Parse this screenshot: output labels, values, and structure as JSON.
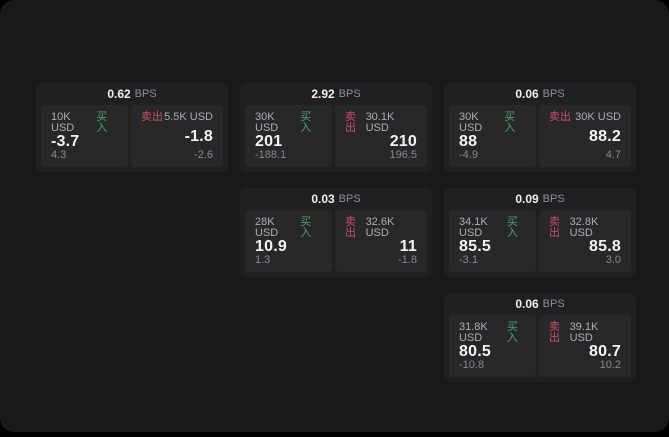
{
  "labels": {
    "bps": "BPS",
    "buy": "买入",
    "sell": "卖出"
  },
  "colors": {
    "buy": "#47a477",
    "sell": "#c94f63",
    "screen_background": "#19191b",
    "card_background": "#202022",
    "panel_background": "#28282a"
  },
  "cards": [
    {
      "bps": "0.62",
      "buy": {
        "amount": "10K USD",
        "price": "-3.7",
        "delta": "4.3"
      },
      "sell": {
        "amount": "5.5K USD",
        "price": "-1.8",
        "delta": "-2.6"
      }
    },
    {
      "bps": "2.92",
      "buy": {
        "amount": "30K USD",
        "price": "201",
        "delta": "-188.1"
      },
      "sell": {
        "amount": "30.1K USD",
        "price": "210",
        "delta": "196.5"
      }
    },
    {
      "bps": "0.03",
      "buy": {
        "amount": "28K USD",
        "price": "10.9",
        "delta": "1.3"
      },
      "sell": {
        "amount": "32.6K USD",
        "price": "11",
        "delta": "-1.8"
      }
    },
    {
      "bps": "0.06",
      "buy": {
        "amount": "30K USD",
        "price": "88",
        "delta": "-4.9"
      },
      "sell": {
        "amount": "30K USD",
        "price": "88.2",
        "delta": "4.7"
      }
    },
    {
      "bps": "0.09",
      "buy": {
        "amount": "34.1K USD",
        "price": "85.5",
        "delta": "-3.1"
      },
      "sell": {
        "amount": "32.8K USD",
        "price": "85.8",
        "delta": "3.0"
      }
    },
    {
      "bps": "0.06",
      "buy": {
        "amount": "31.8K USD",
        "price": "80.5",
        "delta": "-10.8"
      },
      "sell": {
        "amount": "39.1K USD",
        "price": "80.7",
        "delta": "10.2"
      }
    }
  ]
}
